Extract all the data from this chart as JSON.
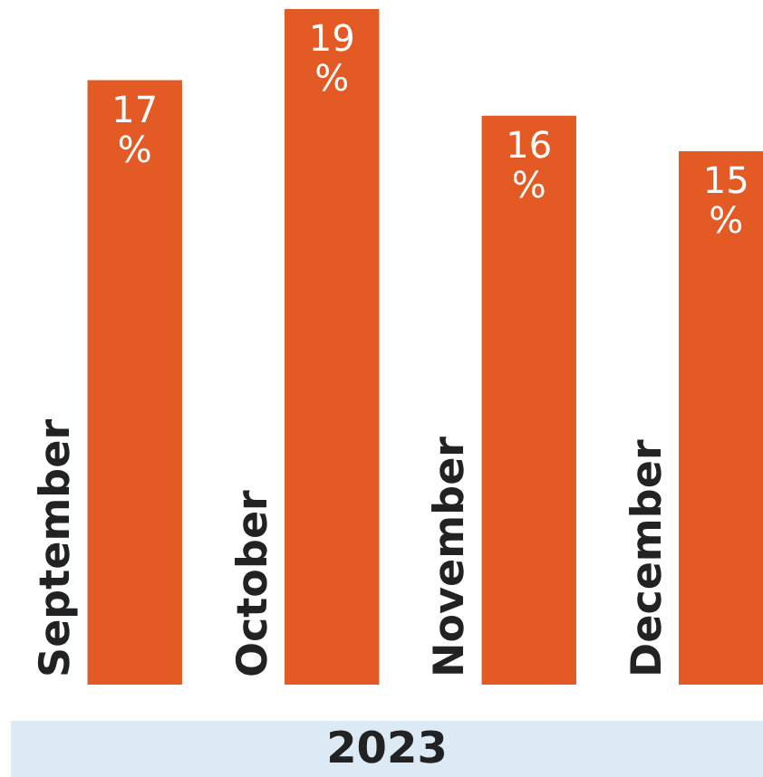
{
  "chart_data": {
    "type": "bar",
    "xlabel": "2023",
    "categories": [
      "September",
      "October",
      "November",
      "December"
    ],
    "values": [
      17,
      19,
      16,
      15
    ],
    "color": "#e35a24",
    "data_labels": true,
    "value_labels": [
      "17 %",
      "19 %",
      "16 %",
      "15 %"
    ]
  }
}
